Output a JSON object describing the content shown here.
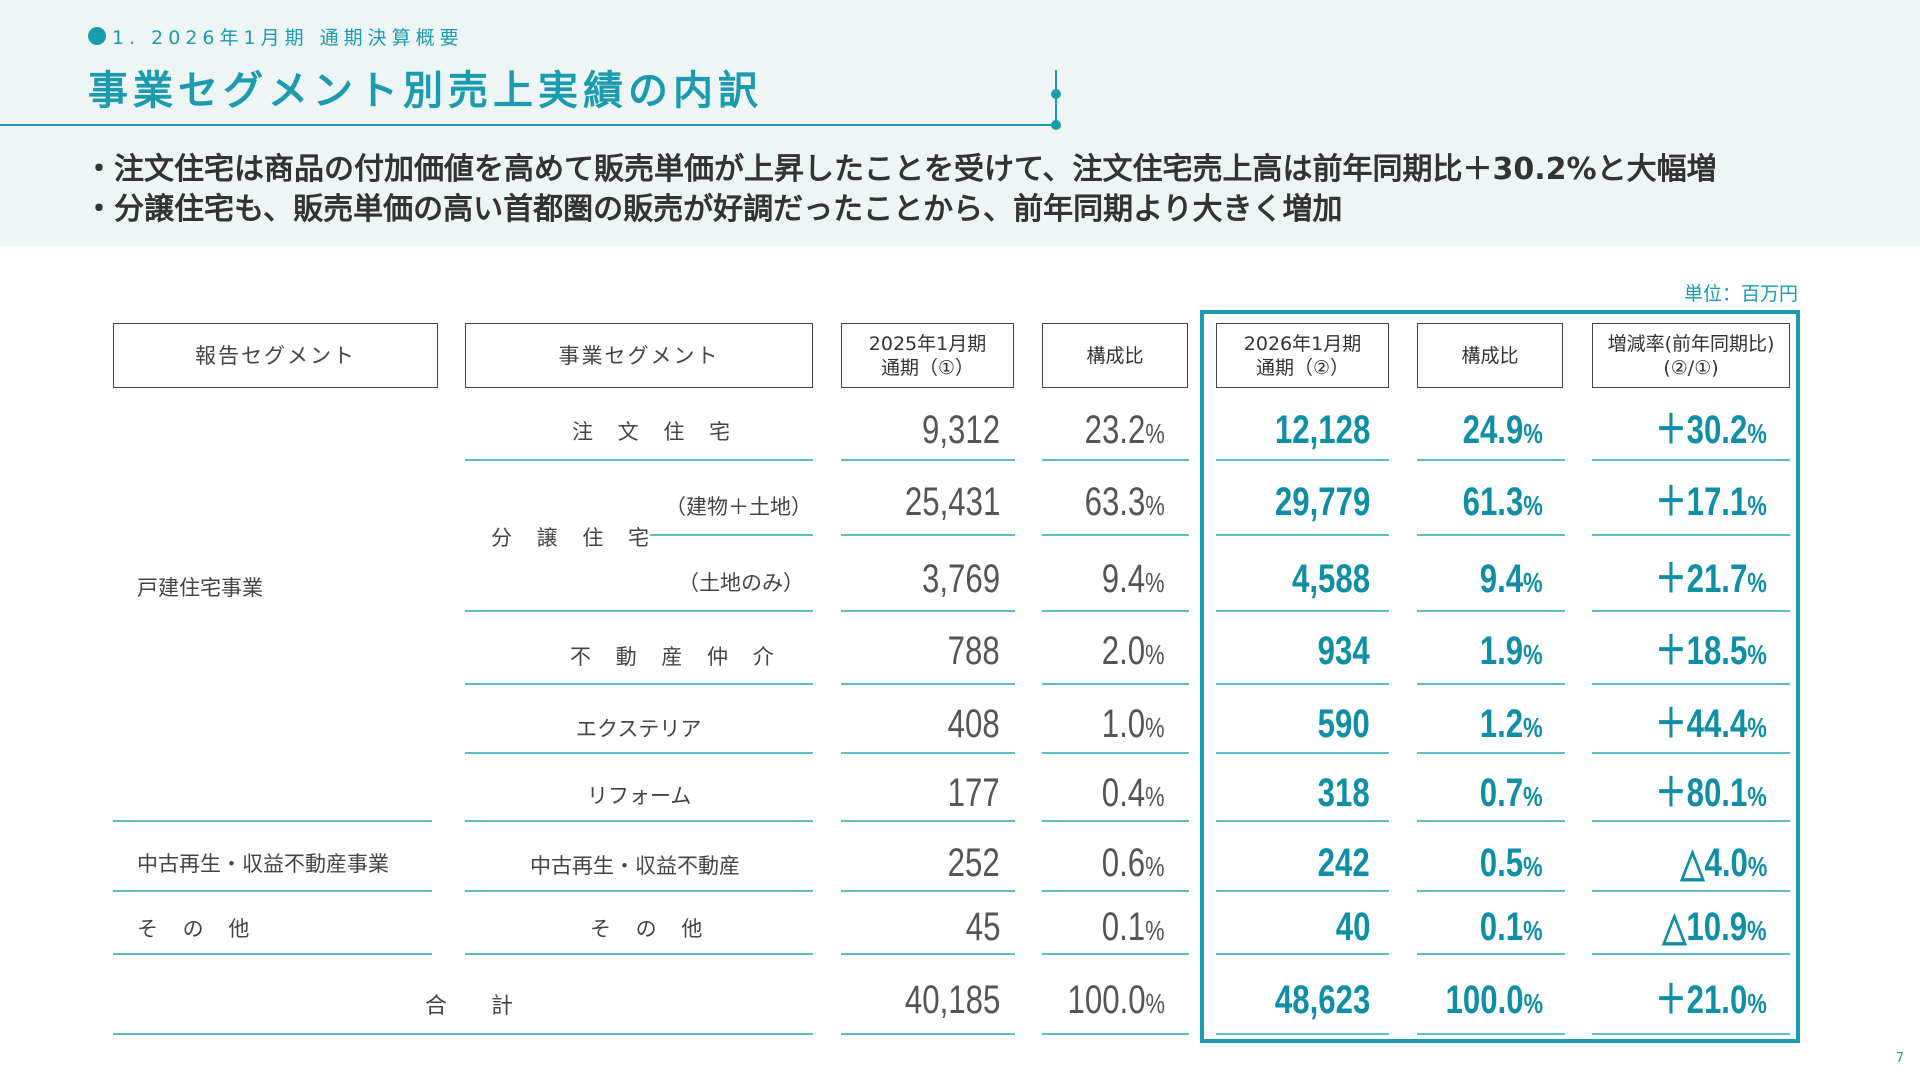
{
  "header": {
    "breadcrumb": "1. 2026年1月期 通期決算概要",
    "title": "事業セグメント別売上実績の内訳"
  },
  "bullets": [
    "・注文住宅は商品の付加価値を高めて販売単価が上昇したことを受けて、注文住宅売上高は前年同期比＋30.2%と大幅増",
    "・分譲住宅も、販売単価の高い首都圏の販売が好調だったことから、前年同期より大きく増加"
  ],
  "table": {
    "unit": "単位：百万円",
    "headers": {
      "report_segment": "報告セグメント",
      "business_segment": "事業セグメント",
      "prev_period": "2025年1月期\n通期（①）",
      "prev_ratio": "構成比",
      "curr_period": "2026年1月期\n通期（②）",
      "curr_ratio": "構成比",
      "growth": "増減率(前年同期比)\n(②/①)"
    },
    "report_segments": [
      "戸建住宅事業",
      "中古再生・収益不動産事業",
      "そ の 他"
    ],
    "bunjo_label": "分 譲 住 宅",
    "rows": [
      {
        "label": "注 文 住 宅",
        "prev": "9,312",
        "prev_ratio": "23.2",
        "curr": "12,128",
        "curr_ratio": "24.9",
        "growth": "＋30.2"
      },
      {
        "label": "（建物＋土地）",
        "prev": "25,431",
        "prev_ratio": "63.3",
        "curr": "29,779",
        "curr_ratio": "61.3",
        "growth": "＋17.1"
      },
      {
        "label": "（土地のみ）",
        "prev": "3,769",
        "prev_ratio": "9.4",
        "curr": "4,588",
        "curr_ratio": "9.4",
        "growth": "＋21.7"
      },
      {
        "label": "不 動 産 仲 介",
        "prev": "788",
        "prev_ratio": "2.0",
        "curr": "934",
        "curr_ratio": "1.9",
        "growth": "＋18.5"
      },
      {
        "label": "エクステリア",
        "prev": "408",
        "prev_ratio": "1.0",
        "curr": "590",
        "curr_ratio": "1.2",
        "growth": "＋44.4"
      },
      {
        "label": "リフォーム",
        "prev": "177",
        "prev_ratio": "0.4",
        "curr": "318",
        "curr_ratio": "0.7",
        "growth": "＋80.1"
      },
      {
        "label": "中古再生・収益不動産",
        "prev": "252",
        "prev_ratio": "0.6",
        "curr": "242",
        "curr_ratio": "0.5",
        "growth": "△4.0"
      },
      {
        "label": "そ の 他",
        "prev": "45",
        "prev_ratio": "0.1",
        "curr": "40",
        "curr_ratio": "0.1",
        "growth": "△10.9"
      }
    ],
    "total": {
      "label": "合　　計",
      "prev": "40,185",
      "prev_ratio": "100.0",
      "curr": "48,623",
      "curr_ratio": "100.0",
      "growth": "＋21.0"
    },
    "pct_symbol": "%"
  },
  "page_number": "7"
}
